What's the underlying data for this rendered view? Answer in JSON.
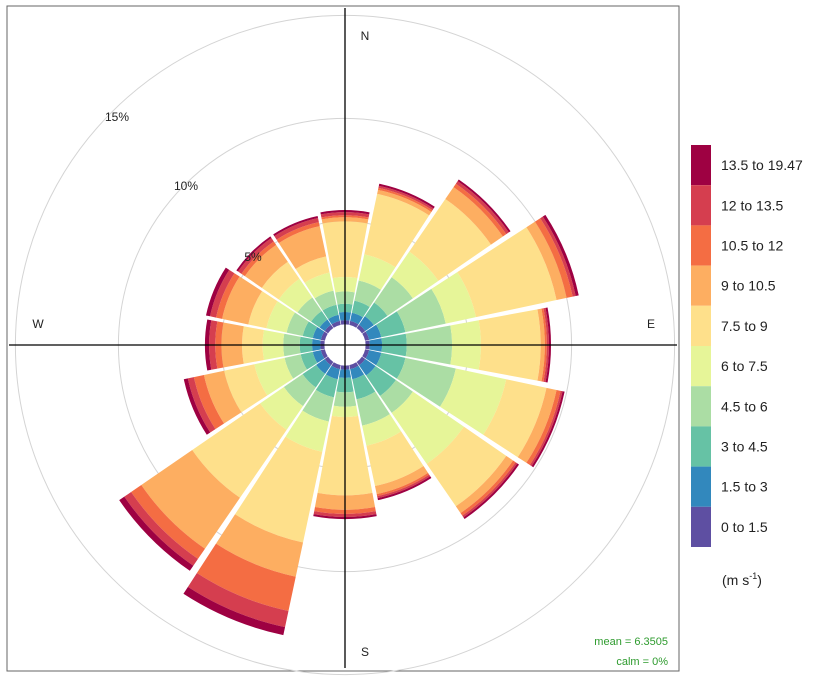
{
  "chart_data": {
    "type": "windrose",
    "directions_deg": [
      0,
      22.5,
      45,
      67.5,
      90,
      112.5,
      135,
      157.5,
      180,
      202.5,
      225,
      247.5,
      270,
      292.5,
      315,
      337.5
    ],
    "compass_labels": {
      "n": "N",
      "e": "E",
      "s": "S",
      "w": "W"
    },
    "ring_labels": [
      "5%",
      "10%",
      "15%"
    ],
    "ring_values": [
      5,
      10,
      15
    ],
    "calm_offset_pct": 1.0,
    "legend_title": "(m s",
    "legend_unit_exp": "-1",
    "legend_unit_close": ")",
    "bins": [
      {
        "label": "0 to 1.5",
        "color": "#5e4fa2"
      },
      {
        "label": "1.5 to 3",
        "color": "#3288bd"
      },
      {
        "label": "3 to 4.5",
        "color": "#66c2a5"
      },
      {
        "label": "4.5 to 6",
        "color": "#abdda4"
      },
      {
        "label": "6 to 7.5",
        "color": "#e6f598"
      },
      {
        "label": "7.5 to 9",
        "color": "#fee08b"
      },
      {
        "label": "9 to 10.5",
        "color": "#fdae61"
      },
      {
        "label": "10.5 to 12",
        "color": "#f46d43"
      },
      {
        "label": "12 to 13.5",
        "color": "#d53e4f"
      },
      {
        "label": "13.5 to 19.47",
        "color": "#9e0142"
      }
    ],
    "cumulative_pct": [
      [
        0.2,
        0.6,
        1.0,
        1.6,
        2.3,
        5.0,
        5.2,
        5.3,
        5.45,
        5.55
      ],
      [
        0.2,
        0.6,
        1.2,
        2.2,
        3.5,
        6.5,
        6.7,
        6.8,
        6.9,
        7.0
      ],
      [
        0.2,
        0.7,
        1.5,
        3.0,
        4.5,
        7.6,
        8.3,
        8.5,
        8.65,
        8.75
      ],
      [
        0.2,
        0.8,
        2.0,
        4.0,
        5.5,
        9.5,
        10.0,
        10.3,
        10.45,
        10.6
      ],
      [
        0.2,
        0.8,
        2.0,
        4.2,
        5.6,
        8.5,
        8.7,
        8.8,
        8.9,
        9.0
      ],
      [
        0.2,
        0.8,
        2.0,
        4.5,
        7.0,
        9.0,
        9.5,
        9.7,
        9.8,
        9.9
      ],
      [
        0.2,
        0.8,
        2.0,
        3.0,
        6.0,
        8.5,
        8.9,
        9.05,
        9.15,
        9.25
      ],
      [
        0.2,
        0.7,
        1.7,
        3.0,
        4.0,
        6.0,
        6.4,
        6.5,
        6.6,
        6.7
      ],
      [
        0.2,
        0.6,
        1.3,
        2.0,
        2.5,
        6.3,
        7.0,
        7.2,
        7.35,
        7.45
      ],
      [
        0.2,
        0.7,
        1.6,
        2.8,
        4.3,
        8.8,
        10.5,
        12.2,
        13.0,
        13.4
      ],
      [
        0.2,
        0.7,
        1.5,
        2.6,
        4.0,
        8.0,
        11.0,
        11.6,
        12.0,
        12.3
      ],
      [
        0.2,
        0.6,
        1.2,
        2.0,
        3.5,
        5.0,
        6.0,
        6.5,
        6.8,
        7.0
      ],
      [
        0.2,
        0.6,
        1.2,
        2.0,
        3.0,
        4.0,
        5.0,
        5.3,
        5.6,
        5.8
      ],
      [
        0.2,
        0.6,
        1.1,
        1.9,
        2.9,
        3.8,
        5.1,
        5.4,
        5.7,
        5.9
      ],
      [
        0.2,
        0.5,
        1.0,
        1.8,
        2.9,
        3.9,
        4.9,
        5.1,
        5.3,
        5.4
      ],
      [
        0.2,
        0.5,
        1.0,
        1.7,
        2.6,
        3.4,
        4.9,
        5.1,
        5.3,
        5.4
      ]
    ],
    "grid": true,
    "legend_position": "right",
    "mean_label": "mean = 6.3505",
    "calm_label": "calm = 0%"
  }
}
